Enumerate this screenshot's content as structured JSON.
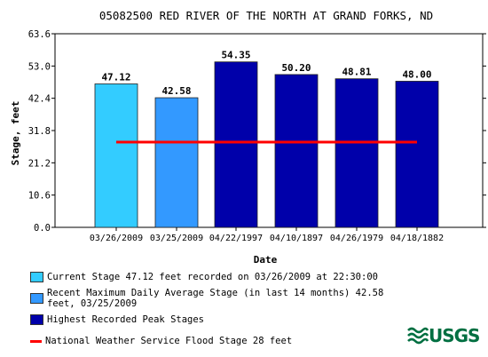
{
  "chart_data": {
    "type": "bar",
    "title": "05082500 RED RIVER OF THE NORTH AT GRAND FORKS, ND",
    "xlabel": "Date",
    "ylabel": "Stage, feet",
    "ylim": [
      0,
      63.6
    ],
    "yticks": [
      "0.0",
      "10.6",
      "21.2",
      "31.8",
      "42.4",
      "53.0",
      "63.6"
    ],
    "categories": [
      "03/26/2009",
      "03/25/2009",
      "04/22/1997",
      "04/10/1897",
      "04/26/1979",
      "04/18/1882"
    ],
    "values": [
      47.12,
      42.58,
      54.35,
      50.2,
      48.81,
      48.0
    ],
    "value_labels": [
      "47.12",
      "42.58",
      "54.35",
      "50.20",
      "48.81",
      "48.00"
    ],
    "bar_colors": [
      "#33ccff",
      "#3399ff",
      "#0000aa",
      "#0000aa",
      "#0000aa",
      "#0000aa"
    ],
    "flood_stage": {
      "value": 28,
      "color": "#ff0000"
    },
    "grid": false
  },
  "legend": [
    {
      "label": "Current Stage 47.12 feet recorded on 03/26/2009 at 22:30:00",
      "color": "#33ccff",
      "kind": "box"
    },
    {
      "label": "Recent Maximum Daily Average Stage (in last 14 months) 42.58 feet, 03/25/2009",
      "color": "#3399ff",
      "kind": "box"
    },
    {
      "label": "Highest Recorded Peak Stages",
      "color": "#0000aa",
      "kind": "box"
    },
    {
      "label": "National Weather Service Flood Stage 28 feet",
      "color": "#ff0000",
      "kind": "line"
    }
  ],
  "logo": {
    "text": "USGS",
    "color": "#006f41"
  }
}
